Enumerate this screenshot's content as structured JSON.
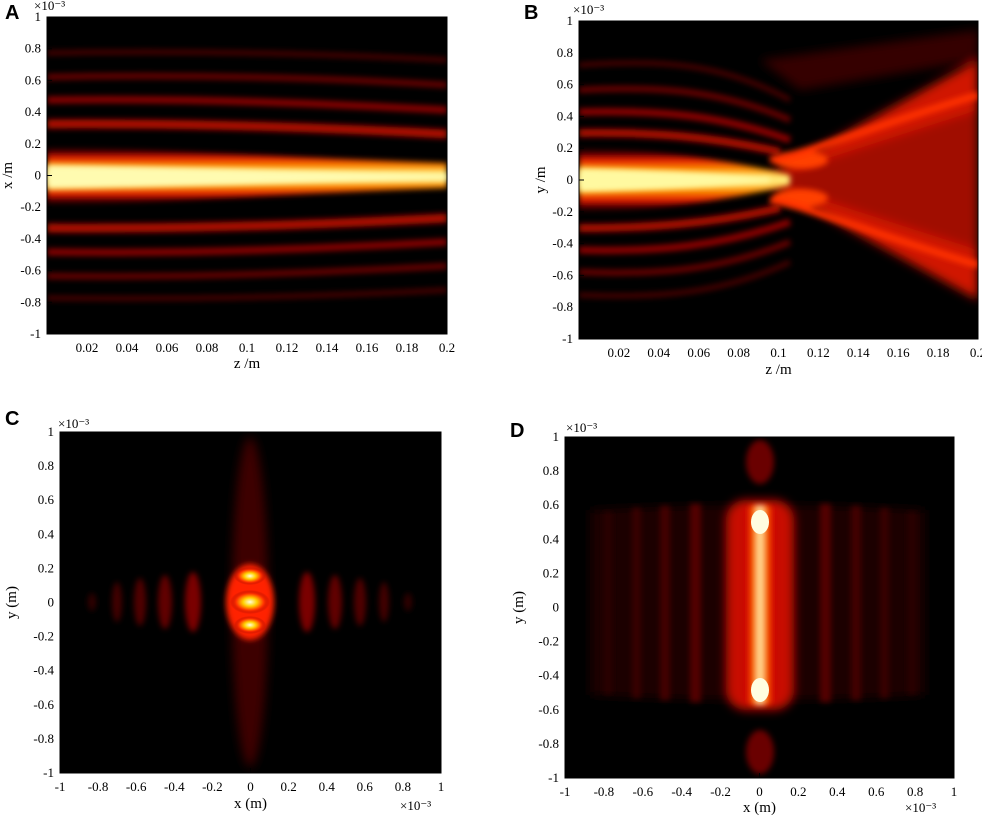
{
  "figure": {
    "panels": [
      {
        "label": "A",
        "xlabel": "z /m",
        "ylabel": "x /m",
        "exponent": "×10⁻³",
        "x_exponent": ""
      },
      {
        "label": "B",
        "xlabel": "z /m",
        "ylabel": "y /m",
        "exponent": "×10⁻³",
        "x_exponent": ""
      },
      {
        "label": "C",
        "xlabel": "x (m)",
        "ylabel": "y (m)",
        "exponent": "×10⁻³",
        "x_exponent": "×10⁻³"
      },
      {
        "label": "D",
        "xlabel": "x (m)",
        "ylabel": "y (m)",
        "exponent": "×10⁻³",
        "x_exponent": "×10⁻³"
      }
    ]
  },
  "colors": {
    "background": "#000000",
    "low": "#5a0000",
    "mid": "#ff2000",
    "high": "#ffffff"
  },
  "chart_data": [
    {
      "type": "heatmap",
      "label": "A",
      "xlabel": "z /m",
      "ylabel": "x /m",
      "xlim": [
        0,
        0.2
      ],
      "ylim": [
        -1,
        1
      ],
      "y_scale_label": "×10⁻³",
      "x_ticks": [
        "0.02",
        "0.04",
        "0.06",
        "0.08",
        "0.1",
        "0.12",
        "0.14",
        "0.16",
        "0.18",
        "0.2"
      ],
      "y_ticks": [
        "-1",
        "-0.8",
        "-0.6",
        "-0.4",
        "-0.2",
        "0",
        "0.2",
        "0.4",
        "0.6",
        "0.8",
        "1"
      ],
      "colormap": "hot"
    },
    {
      "type": "heatmap",
      "label": "B",
      "xlabel": "z /m",
      "ylabel": "y /m",
      "xlim": [
        0,
        0.2
      ],
      "ylim": [
        -1,
        1
      ],
      "y_scale_label": "×10⁻³",
      "x_ticks": [
        "0.02",
        "0.04",
        "0.06",
        "0.08",
        "0.1",
        "0.12",
        "0.14",
        "0.16",
        "0.18",
        "0.2"
      ],
      "y_ticks": [
        "-1",
        "-0.8",
        "-0.6",
        "-0.4",
        "-0.2",
        "0",
        "0.2",
        "0.4",
        "0.6",
        "0.8",
        "1"
      ],
      "colormap": "hot"
    },
    {
      "type": "heatmap",
      "label": "C",
      "xlabel": "x (m)",
      "ylabel": "y (m)",
      "xlim": [
        -1,
        1
      ],
      "ylim": [
        -1,
        1
      ],
      "x_scale_label": "×10⁻³",
      "y_scale_label": "×10⁻³",
      "x_ticks": [
        "-1",
        "-0.8",
        "-0.6",
        "-0.4",
        "-0.2",
        "0",
        "0.2",
        "0.4",
        "0.6",
        "0.8",
        "1"
      ],
      "y_ticks": [
        "-1",
        "-0.8",
        "-0.6",
        "-0.4",
        "-0.2",
        "0",
        "0.2",
        "0.4",
        "0.6",
        "0.8",
        "1"
      ],
      "colormap": "hot"
    },
    {
      "type": "heatmap",
      "label": "D",
      "xlabel": "x (m)",
      "ylabel": "y (m)",
      "xlim": [
        -1,
        1
      ],
      "ylim": [
        -1,
        1
      ],
      "x_scale_label": "×10⁻³",
      "y_scale_label": "×10⁻³",
      "x_ticks": [
        "-1",
        "-0.8",
        "-0.6",
        "-0.4",
        "-0.2",
        "0",
        "0.2",
        "0.4",
        "0.6",
        "0.8",
        "1"
      ],
      "y_ticks": [
        "-1",
        "-0.8",
        "-0.6",
        "-0.4",
        "-0.2",
        "0",
        "0.2",
        "0.4",
        "0.6",
        "0.8",
        "1"
      ],
      "colormap": "hot"
    }
  ]
}
